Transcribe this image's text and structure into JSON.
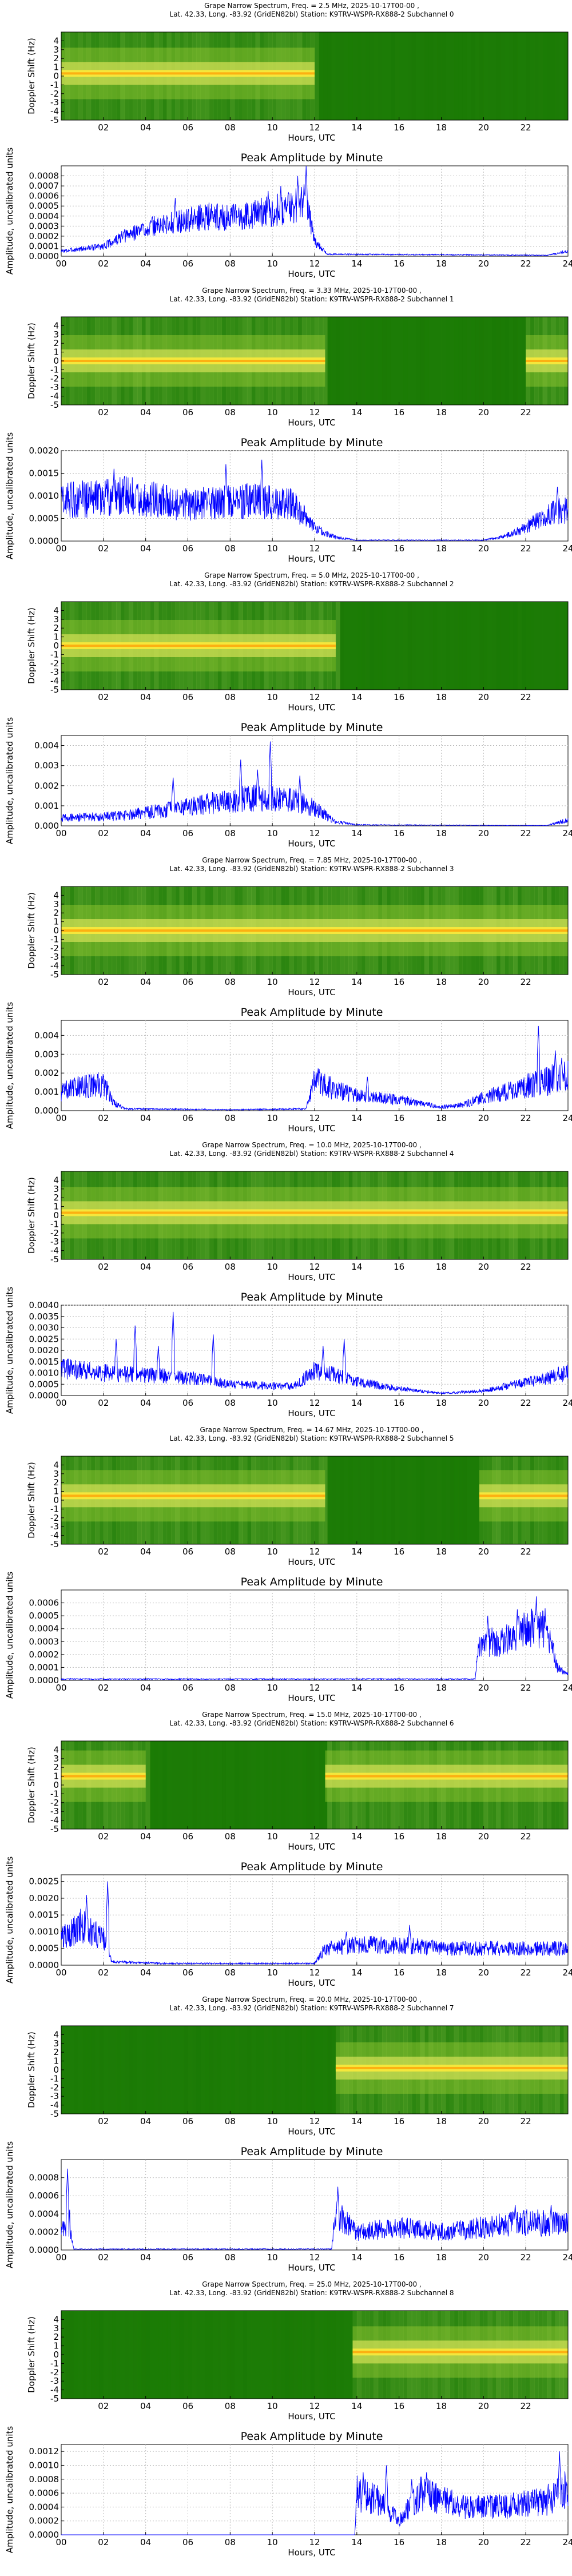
{
  "chart_data": {
    "type": "grape-narrow-spectrum-stack",
    "x_axis": {
      "label": "Hours, UTC",
      "range": [
        0,
        24
      ],
      "spectrum_ticks": [
        "02",
        "04",
        "06",
        "08",
        "10",
        "12",
        "14",
        "16",
        "18",
        "20",
        "22"
      ],
      "amplitude_ticks": [
        "00",
        "02",
        "04",
        "06",
        "08",
        "10",
        "12",
        "14",
        "16",
        "18",
        "20",
        "22",
        "24"
      ]
    },
    "spectrum_y_axis": {
      "label": "Doppler Shift (Hz)",
      "range": [
        -5,
        5
      ],
      "ticks": [
        "-5",
        "-4",
        "-3",
        "-2",
        "-1",
        "0",
        "1",
        "2",
        "3",
        "4"
      ]
    },
    "amplitude_y_label": "Amplitude, uncalibrated units",
    "amplitude_title": "Peak Amplitude by Minute",
    "colors": {
      "background_green": "#1a7a05",
      "line_blue": "#0000ff",
      "grid": "#bbbbbb"
    },
    "channels": [
      {
        "title1": "Grape Narrow Spectrum, Freq. = 2.5 MHz, 2025-10-17T00-00 ,",
        "title2": "Lat.  42.33, Long. -83.92 (GridEN82bl) Station: K9TRV-WSPR-RX888-2 Subchannel 0",
        "y_max": 0.0009,
        "ticks": [
          "0.0000",
          "0.0001",
          "0.0002",
          "0.0003",
          "0.0004",
          "0.0005",
          "0.0006",
          "0.0007",
          "0.0008"
        ],
        "tick_values": [
          0,
          0.0001,
          0.0002,
          0.0003,
          0.0004,
          0.0005,
          0.0006,
          0.0007,
          0.0008
        ],
        "profile": [
          [
            0,
            5e-05
          ],
          [
            2,
            0.0001
          ],
          [
            3,
            0.0002
          ],
          [
            4,
            0.00028
          ],
          [
            5,
            0.00032
          ],
          [
            6,
            0.00036
          ],
          [
            7,
            0.0004
          ],
          [
            8,
            0.00038
          ],
          [
            9,
            0.00042
          ],
          [
            10,
            0.00045
          ],
          [
            11,
            0.0005
          ],
          [
            11.6,
            0.00055
          ],
          [
            12,
            0.00015
          ],
          [
            12.6,
            2e-05
          ],
          [
            23,
            1e-05
          ],
          [
            24,
            5e-05
          ]
        ],
        "spikes": [
          [
            11.2,
            0.0008
          ],
          [
            11.5,
            0.00072
          ],
          [
            11.6,
            0.0009
          ],
          [
            9.8,
            0.00065
          ],
          [
            10.4,
            0.0007
          ],
          [
            5.4,
            0.00058
          ]
        ],
        "noise": 0.35,
        "signal_spans": [
          [
            0,
            12
          ]
        ],
        "signal_offset": 0.3
      },
      {
        "title1": "Grape Narrow Spectrum, Freq. = 3.33 MHz, 2025-10-17T00-00 ,",
        "title2": "Lat.  42.33, Long. -83.92 (GridEN82bl) Station: K9TRV-WSPR-RX888-2 Subchannel 1",
        "y_max": 0.002,
        "ticks": [
          "0.0000",
          "0.0005",
          "0.0010",
          "0.0015",
          "0.0020"
        ],
        "tick_values": [
          0,
          0.0005,
          0.001,
          0.0015,
          0.002
        ],
        "profile": [
          [
            0,
            0.0009
          ],
          [
            3,
            0.001
          ],
          [
            6,
            0.0008
          ],
          [
            9,
            0.0009
          ],
          [
            11,
            0.0008
          ],
          [
            12,
            0.0003
          ],
          [
            13,
            8e-05
          ],
          [
            14,
            2e-05
          ],
          [
            20,
            2e-05
          ],
          [
            21,
            0.0001
          ],
          [
            22,
            0.0003
          ],
          [
            23,
            0.0006
          ],
          [
            24,
            0.0007
          ]
        ],
        "spikes": [
          [
            9.5,
            0.0018
          ],
          [
            7.8,
            0.0017
          ],
          [
            2.5,
            0.0016
          ],
          [
            23.5,
            0.0012
          ]
        ],
        "noise": 0.45,
        "signal_spans": [
          [
            0,
            12.5
          ],
          [
            22,
            24
          ]
        ],
        "signal_offset": 0.0
      },
      {
        "title1": "Grape Narrow Spectrum, Freq. = 5.0 MHz, 2025-10-17T00-00 ,",
        "title2": "Lat.  42.33, Long. -83.92 (GridEN82bl) Station: K9TRV-WSPR-RX888-2 Subchannel 2",
        "y_max": 0.0045,
        "ticks": [
          "0.000",
          "0.001",
          "0.002",
          "0.003",
          "0.004"
        ],
        "tick_values": [
          0,
          0.001,
          0.002,
          0.003,
          0.004
        ],
        "profile": [
          [
            0,
            0.0004
          ],
          [
            3,
            0.0005
          ],
          [
            5,
            0.0008
          ],
          [
            7,
            0.0011
          ],
          [
            9,
            0.0014
          ],
          [
            11,
            0.0013
          ],
          [
            12,
            0.0009
          ],
          [
            13,
            0.0002
          ],
          [
            14,
            5e-05
          ],
          [
            23,
            2e-05
          ],
          [
            24,
            0.0003
          ]
        ],
        "spikes": [
          [
            9.9,
            0.0042
          ],
          [
            8.5,
            0.0033
          ],
          [
            9.3,
            0.0028
          ],
          [
            5.3,
            0.0024
          ],
          [
            11.3,
            0.0025
          ]
        ],
        "noise": 0.5,
        "signal_spans": [
          [
            0,
            13
          ]
        ],
        "signal_offset": 0.0
      },
      {
        "title1": "Grape Narrow Spectrum, Freq. = 7.85 MHz, 2025-10-17T00-00 ,",
        "title2": "Lat.  42.33, Long. -83.92 (GridEN82bl) Station: K9TRV-WSPR-RX888-2 Subchannel 3",
        "y_max": 0.0048,
        "ticks": [
          "0.000",
          "0.001",
          "0.002",
          "0.003",
          "0.004"
        ],
        "tick_values": [
          0,
          0.001,
          0.002,
          0.003,
          0.004
        ],
        "profile": [
          [
            0,
            0.001
          ],
          [
            1,
            0.0013
          ],
          [
            2,
            0.0014
          ],
          [
            2.5,
            0.0004
          ],
          [
            3,
            0.0001
          ],
          [
            8,
            5e-05
          ],
          [
            11.6,
            0.0001
          ],
          [
            12,
            0.0016
          ],
          [
            13,
            0.0011
          ],
          [
            14,
            0.0008
          ],
          [
            16,
            0.0006
          ],
          [
            18,
            0.0002
          ],
          [
            19,
            0.0003
          ],
          [
            20,
            0.0007
          ],
          [
            21,
            0.001
          ],
          [
            22,
            0.0013
          ],
          [
            23,
            0.0016
          ],
          [
            24,
            0.0018
          ]
        ],
        "spikes": [
          [
            22.6,
            0.0045
          ],
          [
            23.4,
            0.0032
          ],
          [
            23.7,
            0.0028
          ],
          [
            14.5,
            0.0018
          ]
        ],
        "noise": 0.5,
        "signal_spans": [
          [
            0,
            24
          ]
        ],
        "signal_offset": 0.0
      },
      {
        "title1": "Grape Narrow Spectrum, Freq. = 10.0 MHz, 2025-10-17T00-00 ,",
        "title2": "Lat.  42.33, Long. -83.92 (GridEN82bl) Station: K9TRV-WSPR-RX888-2 Subchannel 4",
        "y_max": 0.004,
        "ticks": [
          "0.0000",
          "0.0005",
          "0.0010",
          "0.0015",
          "0.0020",
          "0.0025",
          "0.0030",
          "0.0035",
          "0.0040"
        ],
        "tick_values": [
          0,
          0.0005,
          0.001,
          0.0015,
          0.002,
          0.0025,
          0.003,
          0.0035,
          0.004
        ],
        "profile": [
          [
            0,
            0.0012
          ],
          [
            2,
            0.001
          ],
          [
            4,
            0.0009
          ],
          [
            6,
            0.0008
          ],
          [
            8,
            0.0005
          ],
          [
            11,
            0.0004
          ],
          [
            12,
            0.0011
          ],
          [
            13,
            0.0009
          ],
          [
            14,
            0.0006
          ],
          [
            16,
            0.0003
          ],
          [
            18,
            0.0001
          ],
          [
            20,
            0.0002
          ],
          [
            22,
            0.0006
          ],
          [
            24,
            0.001
          ]
        ],
        "spikes": [
          [
            5.3,
            0.0037
          ],
          [
            3.5,
            0.0031
          ],
          [
            7.2,
            0.0027
          ],
          [
            2.6,
            0.0025
          ],
          [
            13.4,
            0.0025
          ],
          [
            4.6,
            0.0022
          ],
          [
            12.4,
            0.0022
          ]
        ],
        "noise": 0.4,
        "signal_spans": [
          [
            0,
            24
          ]
        ],
        "signal_offset": 0.3
      },
      {
        "title1": "Grape Narrow Spectrum, Freq. = 14.67 MHz, 2025-10-17T00-00 ,",
        "title2": "Lat.  42.33, Long. -83.92 (GridEN82bl) Station: K9TRV-WSPR-RX888-2 Subchannel 5",
        "y_max": 0.0007,
        "ticks": [
          "0.0000",
          "0.0001",
          "0.0002",
          "0.0003",
          "0.0004",
          "0.0005",
          "0.0006"
        ],
        "tick_values": [
          0,
          0.0001,
          0.0002,
          0.0003,
          0.0004,
          0.0005,
          0.0006
        ],
        "profile": [
          [
            0,
            1e-05
          ],
          [
            12,
            1e-05
          ],
          [
            19.6,
            1e-05
          ],
          [
            19.8,
            0.0003
          ],
          [
            21,
            0.0003
          ],
          [
            22,
            0.0004
          ],
          [
            23,
            0.0004
          ],
          [
            23.5,
            0.0001
          ],
          [
            24,
            5e-05
          ]
        ],
        "spikes": [
          [
            22.5,
            0.00065
          ],
          [
            21.6,
            0.00055
          ],
          [
            20.2,
            0.0005
          ]
        ],
        "noise": 0.4,
        "signal_spans": [
          [
            0,
            12.5
          ],
          [
            19.8,
            24
          ]
        ],
        "signal_offset": 0.5
      },
      {
        "title1": "Grape Narrow Spectrum, Freq. = 15.0 MHz, 2025-10-17T00-00 ,",
        "title2": "Lat.  42.33, Long. -83.92 (GridEN82bl) Station: K9TRV-WSPR-RX888-2 Subchannel 6",
        "y_max": 0.0027,
        "ticks": [
          "0.0000",
          "0.0005",
          "0.0010",
          "0.0015",
          "0.0020",
          "0.0025"
        ],
        "tick_values": [
          0,
          0.0005,
          0.001,
          0.0015,
          0.002,
          0.0025
        ],
        "profile": [
          [
            0,
            0.0008
          ],
          [
            1,
            0.0012
          ],
          [
            2,
            0.0008
          ],
          [
            2.4,
            0.0001
          ],
          [
            5,
            5e-05
          ],
          [
            8,
            5e-05
          ],
          [
            12,
            5e-05
          ],
          [
            12.5,
            0.0005
          ],
          [
            14,
            0.0006
          ],
          [
            16,
            0.0006
          ],
          [
            18,
            0.0005
          ],
          [
            20,
            0.0005
          ],
          [
            22,
            0.0005
          ],
          [
            24,
            0.0005
          ]
        ],
        "spikes": [
          [
            2.2,
            0.0025
          ],
          [
            1.2,
            0.0021
          ],
          [
            16.5,
            0.0012
          ],
          [
            13.5,
            0.001
          ]
        ],
        "noise": 0.45,
        "signal_spans": [
          [
            0,
            4
          ],
          [
            12.5,
            24
          ]
        ],
        "signal_offset": 1.0
      },
      {
        "title1": "Grape Narrow Spectrum, Freq. = 20.0 MHz, 2025-10-17T00-00 ,",
        "title2": "Lat.  42.33, Long. -83.92 (GridEN82bl) Station: K9TRV-WSPR-RX888-2 Subchannel 7",
        "y_max": 0.001,
        "ticks": [
          "0.0000",
          "0.0002",
          "0.0004",
          "0.0006",
          "0.0008"
        ],
        "tick_values": [
          0,
          0.0002,
          0.0004,
          0.0006,
          0.0008
        ],
        "profile": [
          [
            0,
            0.0002
          ],
          [
            0.4,
            0.0003
          ],
          [
            0.6,
            1e-05
          ],
          [
            12.8,
            1e-05
          ],
          [
            13,
            0.0004
          ],
          [
            14,
            0.0002
          ],
          [
            16,
            0.00025
          ],
          [
            18,
            0.0002
          ],
          [
            20,
            0.00025
          ],
          [
            22,
            0.0003
          ],
          [
            24,
            0.0003
          ]
        ],
        "spikes": [
          [
            0.3,
            0.0009
          ],
          [
            13.1,
            0.0007
          ],
          [
            21.5,
            0.0005
          ],
          [
            23.2,
            0.0005
          ]
        ],
        "noise": 0.5,
        "signal_spans": [
          [
            13,
            24
          ]
        ],
        "signal_offset": 0.2
      },
      {
        "title1": "Grape Narrow Spectrum, Freq. = 25.0 MHz, 2025-10-17T00-00 ,",
        "title2": "Lat.  42.33, Long. -83.92 (GridEN82bl) Station: K9TRV-WSPR-RX888-2 Subchannel 8",
        "y_max": 0.0013,
        "ticks": [
          "0.0000",
          "0.0002",
          "0.0004",
          "0.0006",
          "0.0008",
          "0.0010",
          "0.0012"
        ],
        "tick_values": [
          0,
          0.0002,
          0.0004,
          0.0006,
          0.0008,
          0.001,
          0.0012
        ],
        "profile": [
          [
            0,
            0
          ],
          [
            13.9,
            0
          ],
          [
            14,
            0.0006
          ],
          [
            15,
            0.0005
          ],
          [
            16,
            0.0002
          ],
          [
            17,
            0.0006
          ],
          [
            19,
            0.0004
          ],
          [
            21,
            0.0004
          ],
          [
            23,
            0.0005
          ],
          [
            24,
            0.0007
          ]
        ],
        "spikes": [
          [
            14.3,
            0.0009
          ],
          [
            15.4,
            0.001
          ],
          [
            23.6,
            0.0012
          ],
          [
            17.3,
            0.0009
          ],
          [
            16.6,
            0.0008
          ]
        ],
        "noise": 0.45,
        "signal_spans": [
          [
            13.8,
            24
          ]
        ],
        "signal_offset": 0.3
      }
    ]
  }
}
